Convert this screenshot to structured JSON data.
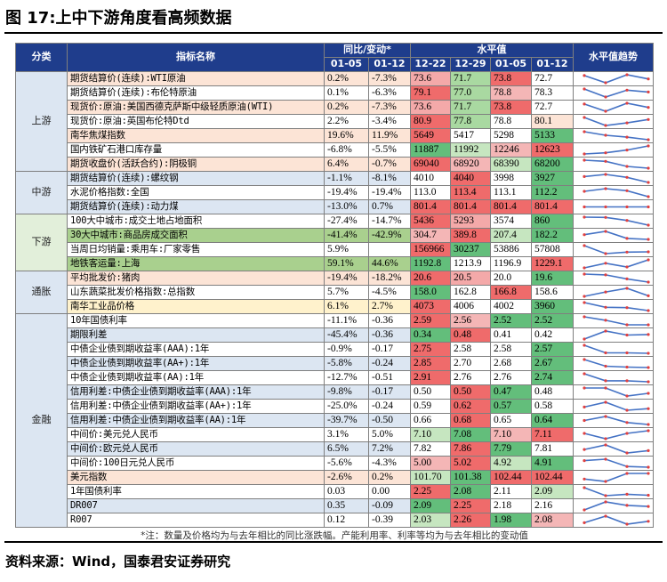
{
  "title": "图 17:上中下游角度看高频数据",
  "source": "资料来源：Wind，国泰君安证券研究",
  "note": "*注：数量及价格均为与去年相比的同比涨跌幅。产能利用率、利率等均为与去年相比的变动值",
  "headers": {
    "category": "分类",
    "indicator": "指标名称",
    "yoy_group": "同比/变动*",
    "level_group": "水平值",
    "trend": "水平值趋势",
    "yoy_dates": [
      "01-05",
      "01-12"
    ],
    "level_dates": [
      "12-22",
      "12-29",
      "01-05",
      "01-12"
    ]
  },
  "colors": {
    "header": "#1f3d8c",
    "category_bg": "#dce6f2",
    "trend_line": "#4472c4",
    "trend_point": "#e04040"
  },
  "rows": [
    {
      "cat": "上游",
      "cat_span": 7,
      "cat_bg": "#dce6f2",
      "name": "期货结算价(连续):WTI原油",
      "name_bg": "#fce4d6",
      "yoy": [
        "0.2%",
        "-7.3%"
      ],
      "yoy_bg": [
        "#fce4d6",
        "#fce4d6"
      ],
      "levels": [
        "73.6",
        "71.7",
        "73.8",
        "72.7"
      ],
      "level_bg": [
        "#f4a9a9",
        "#a9d9a1",
        "#ef6b6b",
        "#ffffff"
      ],
      "trend": [
        73.6,
        71.7,
        73.8,
        72.7
      ]
    },
    {
      "name": "期货结算价(连续):布伦特原油",
      "name_bg": "#ffffff",
      "yoy": [
        "0.1%",
        "-6.3%"
      ],
      "yoy_bg": [
        "#ffffff",
        "#ffffff"
      ],
      "levels": [
        "79.1",
        "77.0",
        "78.8",
        "78.3"
      ],
      "level_bg": [
        "#ef6b6b",
        "#a9d9a1",
        "#f4b6b6",
        "#ffffff"
      ],
      "trend": [
        79.1,
        77.0,
        78.8,
        78.3
      ]
    },
    {
      "name": "现货价:原油:美国西德克萨斯中级轻质原油(WTI)",
      "name_bg": "#fce4d6",
      "yoy": [
        "0.2%",
        "-7.3%"
      ],
      "yoy_bg": [
        "#fce4d6",
        "#fce4d6"
      ],
      "levels": [
        "73.6",
        "71.7",
        "73.8",
        "72.7"
      ],
      "level_bg": [
        "#f4a9a9",
        "#a9d9a1",
        "#ef6b6b",
        "#ffffff"
      ],
      "trend": [
        73.6,
        71.7,
        73.8,
        72.7
      ]
    },
    {
      "name": "现货价:原油:英国布伦特Dtd",
      "name_bg": "#ffffff",
      "yoy": [
        "2.2%",
        "-3.4%"
      ],
      "yoy_bg": [
        "#ffffff",
        "#ffffff"
      ],
      "levels": [
        "80.9",
        "77.8",
        "78.8",
        "80.1"
      ],
      "level_bg": [
        "#ef6b6b",
        "#a9d9a1",
        "#ffffff",
        "#fce4d6"
      ],
      "trend": [
        80.9,
        77.8,
        78.8,
        80.1
      ]
    },
    {
      "name": "南华焦煤指数",
      "name_bg": "#fce4d6",
      "yoy": [
        "19.6%",
        "11.9%"
      ],
      "yoy_bg": [
        "#fce4d6",
        "#fce4d6"
      ],
      "levels": [
        "5649",
        "5417",
        "5298",
        "5133"
      ],
      "level_bg": [
        "#ef6b6b",
        "#ffffff",
        "#ffffff",
        "#63be7b"
      ],
      "trend": [
        5649,
        5417,
        5298,
        5133
      ]
    },
    {
      "name": "国内铁矿石港口库存量",
      "name_bg": "#ffffff",
      "yoy": [
        "-6.8%",
        "-5.5%"
      ],
      "yoy_bg": [
        "#ffffff",
        "#ffffff"
      ],
      "levels": [
        "11887",
        "11992",
        "12246",
        "12623"
      ],
      "level_bg": [
        "#63be7b",
        "#c6e6c0",
        "#f4b6b6",
        "#ef6b6b"
      ],
      "trend": [
        11887,
        11992,
        12246,
        12623
      ]
    },
    {
      "name": "期货收盘价(活跃合约):阴极铜",
      "name_bg": "#fce4d6",
      "yoy": [
        "6.4%",
        "-0.7%"
      ],
      "yoy_bg": [
        "#fce4d6",
        "#fce4d6"
      ],
      "levels": [
        "69040",
        "68920",
        "68390",
        "68200"
      ],
      "level_bg": [
        "#ef6b6b",
        "#f4b6b6",
        "#c6e6c0",
        "#63be7b"
      ],
      "trend": [
        69040,
        68920,
        68390,
        68200
      ]
    },
    {
      "cat": "中游",
      "cat_span": 3,
      "cat_bg": "#dce6f2",
      "name": "期货结算价(连续):螺纹钢",
      "name_bg": "#dce6f2",
      "yoy": [
        "-1.1%",
        "-8.1%"
      ],
      "yoy_bg": [
        "#dce6f2",
        "#dce6f2"
      ],
      "levels": [
        "4010",
        "4040",
        "3998",
        "3927"
      ],
      "level_bg": [
        "#ffffff",
        "#ef6b6b",
        "#ffffff",
        "#63be7b"
      ],
      "trend": [
        4010,
        4040,
        3998,
        3927
      ]
    },
    {
      "name": "水泥价格指数:全国",
      "name_bg": "#ffffff",
      "yoy": [
        "-19.4%",
        "-19.4%"
      ],
      "yoy_bg": [
        "#ffffff",
        "#ffffff"
      ],
      "levels": [
        "113.0",
        "113.4",
        "113.1",
        "112.2"
      ],
      "level_bg": [
        "#ffffff",
        "#ef6b6b",
        "#ffffff",
        "#63be7b"
      ],
      "trend": [
        113.0,
        113.4,
        113.1,
        112.2
      ]
    },
    {
      "name": "期货结算价(连续):动力煤",
      "name_bg": "#dce6f2",
      "yoy": [
        "-13.0%",
        "0.7%"
      ],
      "yoy_bg": [
        "#dce6f2",
        "#dce6f2"
      ],
      "levels": [
        "801.4",
        "801.4",
        "801.4",
        "801.4"
      ],
      "level_bg": [
        "#ef6b6b",
        "#ef6b6b",
        "#ef6b6b",
        "#ef6b6b"
      ],
      "trend": [
        801.4,
        801.4,
        801.4,
        801.4
      ]
    },
    {
      "cat": "下游",
      "cat_span": 4,
      "cat_bg": "#e2efda",
      "name": "100大中城市:成交土地占地面积",
      "name_bg": "#ffffff",
      "yoy": [
        "-27.4%",
        "-14.7%"
      ],
      "yoy_bg": [
        "#ffffff",
        "#ffffff"
      ],
      "levels": [
        "5436",
        "5293",
        "3574",
        "860"
      ],
      "level_bg": [
        "#ef6b6b",
        "#f4a9a9",
        "#ffffff",
        "#63be7b"
      ],
      "trend": [
        5436,
        5293,
        3574,
        860
      ]
    },
    {
      "name": "30大中城市:商品房成交面积",
      "name_bg": "#a9d08e",
      "yoy": [
        "-41.4%",
        "-42.9%"
      ],
      "yoy_bg": [
        "#a9d08e",
        "#a9d08e"
      ],
      "levels": [
        "304.7",
        "389.8",
        "207.4",
        "182.2"
      ],
      "level_bg": [
        "#f4b6b6",
        "#ef6b6b",
        "#c6e6c0",
        "#63be7b"
      ],
      "trend": [
        304.7,
        389.8,
        207.4,
        182.2
      ]
    },
    {
      "name": "当周日均销量:乘用车:厂家零售",
      "name_bg": "#ffffff",
      "yoy": [
        "5.9%",
        ""
      ],
      "yoy_bg": [
        "#ffffff",
        "#ffffff"
      ],
      "levels": [
        "156966",
        "30237",
        "53886",
        "57808"
      ],
      "level_bg": [
        "#ef6b6b",
        "#63be7b",
        "#ffffff",
        "#ffffff"
      ],
      "trend": [
        156966,
        30237,
        53886,
        57808
      ]
    },
    {
      "name": "地铁客运量:上海",
      "name_bg": "#a9d08e",
      "yoy": [
        "59.1%",
        "44.6%"
      ],
      "yoy_bg": [
        "#a9d08e",
        "#a9d08e"
      ],
      "levels": [
        "1192.8",
        "1213.9",
        "1196.9",
        "1229.1"
      ],
      "level_bg": [
        "#63be7b",
        "#ffffff",
        "#ffffff",
        "#ef6b6b"
      ],
      "trend": [
        1192.8,
        1213.9,
        1196.9,
        1229.1
      ]
    },
    {
      "cat": "通胀",
      "cat_span": 3,
      "cat_bg": "#dce6f2",
      "name": "平均批发价:猪肉",
      "name_bg": "#fce4d6",
      "yoy": [
        "-19.4%",
        "-18.2%"
      ],
      "yoy_bg": [
        "#fce4d6",
        "#fce4d6"
      ],
      "levels": [
        "20.6",
        "20.5",
        "20.0",
        "19.6"
      ],
      "level_bg": [
        "#ef6b6b",
        "#f4a9a9",
        "#ffffff",
        "#63be7b"
      ],
      "trend": [
        20.6,
        20.5,
        20.0,
        19.6
      ]
    },
    {
      "name": "山东蔬菜批发价格指数:总指数",
      "name_bg": "#ffffff",
      "yoy": [
        "5.7%",
        "-4.5%"
      ],
      "yoy_bg": [
        "#ffffff",
        "#ffffff"
      ],
      "levels": [
        "158.0",
        "162.8",
        "166.8",
        "158.6"
      ],
      "level_bg": [
        "#63be7b",
        "#ffffff",
        "#ef6b6b",
        "#ffffff"
      ],
      "trend": [
        158.0,
        162.8,
        166.8,
        158.6
      ]
    },
    {
      "name": "南华工业品价格",
      "name_bg": "#fff2cc",
      "yoy": [
        "6.1%",
        "2.7%"
      ],
      "yoy_bg": [
        "#fff2cc",
        "#fff2cc"
      ],
      "levels": [
        "4073",
        "4006",
        "4002",
        "3960"
      ],
      "level_bg": [
        "#ef6b6b",
        "#ffffff",
        "#ffffff",
        "#63be7b"
      ],
      "trend": [
        4073,
        4006,
        4002,
        3960
      ]
    },
    {
      "cat": "金融",
      "cat_span": 16,
      "cat_bg": "#dce6f2",
      "name": "10年国债利率",
      "name_bg": "#ffffff",
      "yoy": [
        "-11.1%",
        "-0.36"
      ],
      "yoy_bg": [
        "#ffffff",
        "#ffffff"
      ],
      "levels": [
        "2.59",
        "2.56",
        "2.52",
        "2.52"
      ],
      "level_bg": [
        "#ef6b6b",
        "#f4b6b6",
        "#63be7b",
        "#63be7b"
      ],
      "trend": [
        2.59,
        2.56,
        2.52,
        2.52
      ]
    },
    {
      "name": "期限利差",
      "name_bg": "#dce6f2",
      "yoy": [
        "-45.4%",
        "-0.36"
      ],
      "yoy_bg": [
        "#dce6f2",
        "#dce6f2"
      ],
      "levels": [
        "0.34",
        "0.48",
        "0.41",
        "0.42"
      ],
      "level_bg": [
        "#63be7b",
        "#ef6b6b",
        "#ffffff",
        "#ffffff"
      ],
      "trend": [
        0.34,
        0.48,
        0.41,
        0.42
      ]
    },
    {
      "name": "中债企业债到期收益率(AAA):1年",
      "name_bg": "#ffffff",
      "yoy": [
        "-0.9%",
        "-0.17"
      ],
      "yoy_bg": [
        "#ffffff",
        "#ffffff"
      ],
      "levels": [
        "2.75",
        "2.58",
        "2.58",
        "2.57"
      ],
      "level_bg": [
        "#ef6b6b",
        "#ffffff",
        "#ffffff",
        "#63be7b"
      ],
      "trend": [
        2.75,
        2.58,
        2.58,
        2.57
      ]
    },
    {
      "name": "中债企业债到期收益率(AA+):1年",
      "name_bg": "#dce6f2",
      "yoy": [
        "-5.8%",
        "-0.24"
      ],
      "yoy_bg": [
        "#dce6f2",
        "#dce6f2"
      ],
      "levels": [
        "2.85",
        "2.70",
        "2.68",
        "2.67"
      ],
      "level_bg": [
        "#ef6b6b",
        "#ffffff",
        "#ffffff",
        "#63be7b"
      ],
      "trend": [
        2.85,
        2.7,
        2.68,
        2.67
      ]
    },
    {
      "name": "中债企业债到期收益率(AA):1年",
      "name_bg": "#ffffff",
      "yoy": [
        "-12.7%",
        "-0.51"
      ],
      "yoy_bg": [
        "#ffffff",
        "#ffffff"
      ],
      "levels": [
        "2.91",
        "2.76",
        "2.76",
        "2.74"
      ],
      "level_bg": [
        "#ef6b6b",
        "#ffffff",
        "#ffffff",
        "#63be7b"
      ],
      "trend": [
        2.91,
        2.76,
        2.76,
        2.74
      ]
    },
    {
      "name": "信用利差:中债企业债到期收益率(AAA):1年",
      "name_bg": "#dce6f2",
      "yoy": [
        "-9.8%",
        "-0.17"
      ],
      "yoy_bg": [
        "#dce6f2",
        "#dce6f2"
      ],
      "levels": [
        "0.50",
        "0.50",
        "0.47",
        "0.48"
      ],
      "level_bg": [
        "#ffffff",
        "#ef6b6b",
        "#63be7b",
        "#ffffff"
      ],
      "trend": [
        0.5,
        0.5,
        0.47,
        0.48
      ]
    },
    {
      "name": "信用利差:中债企业债到期收益率(AA+):1年",
      "name_bg": "#ffffff",
      "yoy": [
        "-25.0%",
        "-0.24"
      ],
      "yoy_bg": [
        "#ffffff",
        "#ffffff"
      ],
      "levels": [
        "0.59",
        "0.62",
        "0.57",
        "0.58"
      ],
      "level_bg": [
        "#ffffff",
        "#ef6b6b",
        "#63be7b",
        "#ffffff"
      ],
      "trend": [
        0.59,
        0.62,
        0.57,
        0.58
      ]
    },
    {
      "name": "信用利差:中债企业债到期收益率(AA):1年",
      "name_bg": "#dce6f2",
      "yoy": [
        "-39.7%",
        "-0.50"
      ],
      "yoy_bg": [
        "#dce6f2",
        "#dce6f2"
      ],
      "levels": [
        "0.66",
        "0.68",
        "0.65",
        "0.64"
      ],
      "level_bg": [
        "#ffffff",
        "#ef6b6b",
        "#ffffff",
        "#63be7b"
      ],
      "trend": [
        0.66,
        0.68,
        0.65,
        0.64
      ]
    },
    {
      "name": "中间价:美元兑人民币",
      "name_bg": "#ffffff",
      "yoy": [
        "3.1%",
        "5.0%"
      ],
      "yoy_bg": [
        "#ffffff",
        "#ffffff"
      ],
      "levels": [
        "7.10",
        "7.08",
        "7.10",
        "7.11"
      ],
      "level_bg": [
        "#c6e6c0",
        "#63be7b",
        "#f4b6b6",
        "#ef6b6b"
      ],
      "trend": [
        7.1,
        7.08,
        7.1,
        7.11
      ]
    },
    {
      "name": "中间价:欧元兑人民币",
      "name_bg": "#dce6f2",
      "yoy": [
        "6.5%",
        "7.2%"
      ],
      "yoy_bg": [
        "#dce6f2",
        "#dce6f2"
      ],
      "levels": [
        "7.82",
        "7.86",
        "7.79",
        "7.81"
      ],
      "level_bg": [
        "#ffffff",
        "#ef6b6b",
        "#63be7b",
        "#ffffff"
      ],
      "trend": [
        7.82,
        7.86,
        7.79,
        7.81
      ]
    },
    {
      "name": "中间价:100日元兑人民币",
      "name_bg": "#ffffff",
      "yoy": [
        "-5.6%",
        "-4.3%"
      ],
      "yoy_bg": [
        "#ffffff",
        "#ffffff"
      ],
      "levels": [
        "5.00",
        "5.02",
        "4.92",
        "4.91"
      ],
      "level_bg": [
        "#f4b6b6",
        "#ef6b6b",
        "#c6e6c0",
        "#63be7b"
      ],
      "trend": [
        5.0,
        5.02,
        4.92,
        4.91
      ]
    },
    {
      "name": "美元指数",
      "name_bg": "#fce4d6",
      "yoy": [
        "-2.6%",
        "0.2%"
      ],
      "yoy_bg": [
        "#fce4d6",
        "#fce4d6"
      ],
      "levels": [
        "101.70",
        "101.38",
        "102.44",
        "102.44"
      ],
      "level_bg": [
        "#c6e6c0",
        "#63be7b",
        "#ef6b6b",
        "#ef6b6b"
      ],
      "trend": [
        101.7,
        101.38,
        102.44,
        102.44
      ]
    },
    {
      "name": "1年国债利率",
      "name_bg": "#ffffff",
      "yoy": [
        "0.03",
        "0.00"
      ],
      "yoy_bg": [
        "#ffffff",
        "#ffffff"
      ],
      "levels": [
        "2.25",
        "2.08",
        "2.11",
        "2.09"
      ],
      "level_bg": [
        "#ef6b6b",
        "#63be7b",
        "#ffffff",
        "#c6e6c0"
      ],
      "trend": [
        2.25,
        2.08,
        2.11,
        2.09
      ]
    },
    {
      "name": "DR007",
      "name_bg": "#dce6f2",
      "yoy": [
        "0.35",
        "-0.09"
      ],
      "yoy_bg": [
        "#dce6f2",
        "#dce6f2"
      ],
      "levels": [
        "2.09",
        "2.25",
        "2.18",
        "2.16"
      ],
      "level_bg": [
        "#63be7b",
        "#ef6b6b",
        "#ffffff",
        "#ffffff"
      ],
      "trend": [
        2.09,
        2.25,
        2.18,
        2.16
      ]
    },
    {
      "name": "R007",
      "name_bg": "#ffffff",
      "yoy": [
        "0.12",
        "-0.39"
      ],
      "yoy_bg": [
        "#ffffff",
        "#ffffff"
      ],
      "levels": [
        "2.03",
        "2.26",
        "1.98",
        "2.08"
      ],
      "level_bg": [
        "#c6e6c0",
        "#ef6b6b",
        "#63be7b",
        "#f4b6b6"
      ],
      "trend": [
        2.03,
        2.26,
        1.98,
        2.08
      ]
    }
  ]
}
